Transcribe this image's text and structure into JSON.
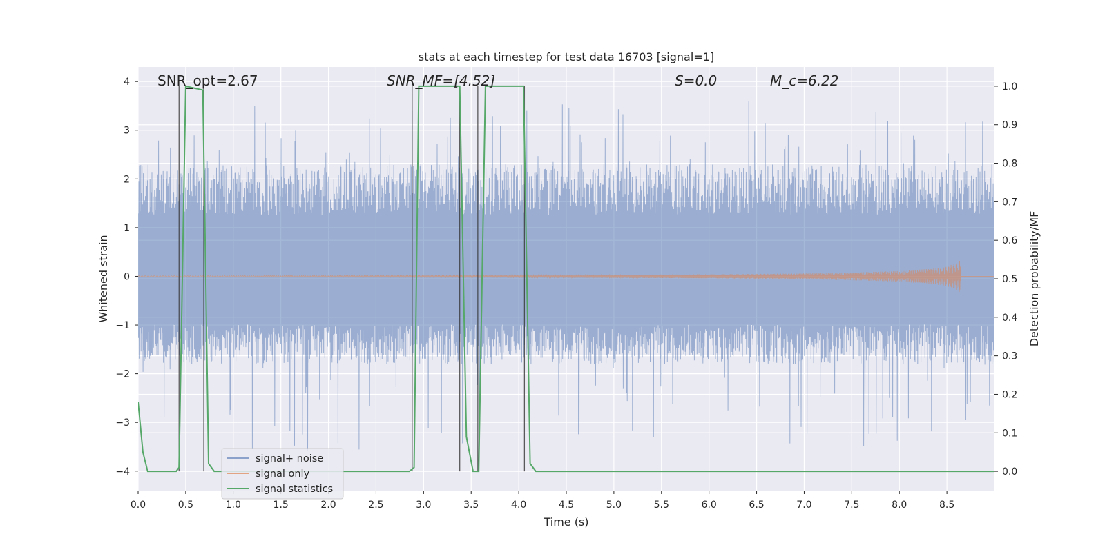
{
  "chart_data": {
    "type": "line",
    "title": "stats at each timestep for test data 16703 [signal=1]",
    "xlabel": "Time (s)",
    "ylabel_left": "Whitened strain",
    "ylabel_right": "Detection probability/MF",
    "xlim": [
      0.0,
      9.0
    ],
    "ylim_left": [
      -4.4,
      4.3
    ],
    "ylim_right": [
      -0.05,
      1.05
    ],
    "x_ticks": [
      "0.0",
      "0.5",
      "1.0",
      "1.5",
      "2.0",
      "2.5",
      "3.0",
      "3.5",
      "4.0",
      "4.5",
      "5.0",
      "5.5",
      "6.0",
      "6.5",
      "7.0",
      "7.5",
      "8.0",
      "8.5"
    ],
    "y_ticks_left": [
      "−4",
      "−3",
      "−2",
      "−1",
      "0",
      "1",
      "2",
      "3",
      "4"
    ],
    "y_ticks_right": [
      "0.0",
      "0.1",
      "0.2",
      "0.3",
      "0.4",
      "0.5",
      "0.6",
      "0.7",
      "0.8",
      "0.9",
      "1.0"
    ],
    "grid": true,
    "legend_position": "lower-left",
    "annotations": {
      "snr_opt": "SNR_opt=2.67",
      "snr_mf": "SNR_MF=[4.52]",
      "s": "S=0.0",
      "mc": "M_c=6.22"
    },
    "series": [
      {
        "name": "signal+ noise",
        "axis": "left",
        "color": "#4c72b0",
        "description_kind": "noise",
        "amplitude_envelope": {
          "typical_max": 2.3,
          "peak_max": 3.9,
          "typical_min": -1.8,
          "peak_min": -4.0
        },
        "x_range": [
          0.0,
          9.0
        ]
      },
      {
        "name": "signal only",
        "axis": "left",
        "color": "#dd8452",
        "chirp": {
          "x": [
            0.0,
            2.0,
            4.0,
            5.0,
            6.0,
            7.0,
            7.5,
            8.0,
            8.3,
            8.5,
            8.6,
            8.65
          ],
          "amplitude": [
            0.01,
            0.015,
            0.02,
            0.03,
            0.04,
            0.06,
            0.08,
            0.11,
            0.15,
            0.2,
            0.28,
            0.35
          ]
        }
      },
      {
        "name": "signal statistics",
        "axis": "right",
        "color": "#55a868",
        "x": [
          0.0,
          0.05,
          0.1,
          0.4,
          0.43,
          0.5,
          0.68,
          0.74,
          0.8,
          2.85,
          2.9,
          2.95,
          3.38,
          3.45,
          3.52,
          3.58,
          3.65,
          4.05,
          4.12,
          4.18,
          9.0
        ],
        "y": [
          0.18,
          0.05,
          0.0,
          0.0,
          0.01,
          1.0,
          0.99,
          0.02,
          0.0,
          0.0,
          0.01,
          1.0,
          1.0,
          0.09,
          0.0,
          0.0,
          1.0,
          1.0,
          0.02,
          0.0,
          0.0
        ]
      }
    ],
    "vertical_markers": {
      "color": "#333333",
      "x": [
        0.43,
        0.69,
        2.88,
        3.38,
        3.57,
        4.06
      ]
    }
  }
}
